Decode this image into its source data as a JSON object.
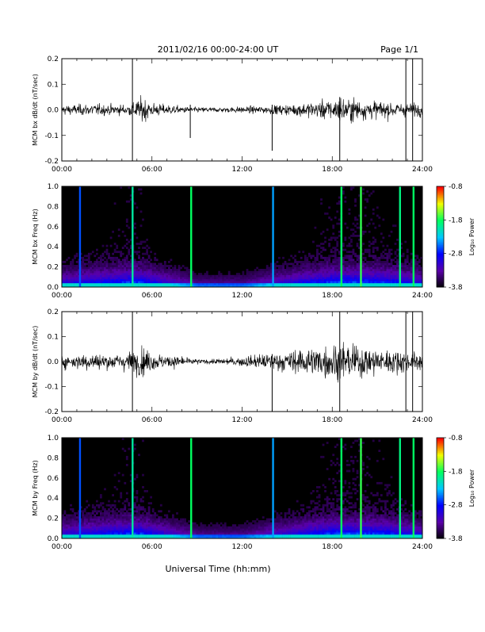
{
  "header": {
    "title": "2011/02/16  00:00-24:00 UT",
    "page": "Page 1/1"
  },
  "footer": {
    "xlabel": "Universal Time (hh:mm)"
  },
  "colorbar": {
    "label": "Log₁₀ Power",
    "ticks": [
      "-0.8",
      "-1.8",
      "-2.8",
      "-3.8"
    ],
    "tick_values": [
      -0.8,
      -1.8,
      -2.8,
      -3.8
    ],
    "range": [
      -3.8,
      -0.8
    ],
    "colormap": [
      "#000000",
      "#5a00a8",
      "#0000ff",
      "#00c8ff",
      "#00ff60",
      "#f0ff00",
      "#ff0000"
    ]
  },
  "chart_data": [
    {
      "type": "line",
      "panel": "bx-timeseries",
      "ylabel": "MCM bx dB/dt (nT/sec)",
      "x_ticks": [
        "00:00",
        "06:00",
        "12:00",
        "18:00",
        "24:00"
      ],
      "xlim": [
        0,
        24
      ],
      "ylim": [
        -0.2,
        0.2
      ],
      "y_ticks": [
        "0.2",
        "0.1",
        "0.0",
        "-0.1",
        "-0.2"
      ],
      "y_tick_values": [
        0.2,
        0.1,
        0.0,
        -0.1,
        -0.2
      ],
      "amplitude_profile": {
        "hours": [
          0,
          1,
          2,
          3,
          4,
          4.6,
          5,
          5.6,
          6,
          7,
          8,
          9,
          10,
          11,
          12,
          13,
          14,
          15,
          16,
          17,
          18,
          18.6,
          19,
          20,
          21,
          22,
          23,
          24
        ],
        "envelope": [
          0.03,
          0.03,
          0.035,
          0.03,
          0.03,
          0.035,
          0.06,
          0.07,
          0.04,
          0.03,
          0.02,
          0.015,
          0.015,
          0.015,
          0.02,
          0.02,
          0.025,
          0.03,
          0.04,
          0.05,
          0.06,
          0.08,
          0.07,
          0.06,
          0.05,
          0.045,
          0.04,
          0.035
        ]
      },
      "spikes": [
        {
          "hour": 4.7,
          "min": -0.2,
          "max": 0.2
        },
        {
          "hour": 8.55,
          "min": -0.11,
          "max": 0.02
        },
        {
          "hour": 14.0,
          "min": -0.16,
          "max": 0.02
        },
        {
          "hour": 18.5,
          "min": -0.2,
          "max": 0.05
        },
        {
          "hour": 22.9,
          "min": -0.2,
          "max": 0.2
        },
        {
          "hour": 23.35,
          "min": -0.2,
          "max": 0.2
        }
      ]
    },
    {
      "type": "heatmap",
      "panel": "bx-spectrogram",
      "ylabel": "MCM bx Freq (Hz)",
      "x_ticks": [
        "00:00",
        "06:00",
        "12:00",
        "18:00",
        "24:00"
      ],
      "xlim": [
        0,
        24
      ],
      "ylim": [
        0,
        1.0
      ],
      "y_ticks": [
        "1.0",
        "0.8",
        "0.6",
        "0.4",
        "0.2",
        "0.0"
      ],
      "y_tick_values": [
        1.0,
        0.8,
        0.6,
        0.4,
        0.2,
        0.0
      ],
      "value_range": [
        -3.8,
        -0.8
      ],
      "bright_lines": [
        {
          "hour": 1.2,
          "level": -2.6
        },
        {
          "hour": 4.7,
          "level": -2.0
        },
        {
          "hour": 8.6,
          "level": -1.8
        },
        {
          "hour": 14.05,
          "level": -2.4
        },
        {
          "hour": 18.6,
          "level": -1.8
        },
        {
          "hour": 19.9,
          "level": -1.7
        },
        {
          "hour": 22.5,
          "level": -1.9
        },
        {
          "hour": 23.4,
          "level": -1.8
        }
      ]
    },
    {
      "type": "line",
      "panel": "by-timeseries",
      "ylabel": "MCM by dB/dt (nT/sec)",
      "x_ticks": [
        "00:00",
        "06:00",
        "12:00",
        "18:00",
        "24:00"
      ],
      "xlim": [
        0,
        24
      ],
      "ylim": [
        -0.2,
        0.2
      ],
      "y_ticks": [
        "0.2",
        "0.1",
        "0.0",
        "-0.1",
        "-0.2"
      ],
      "y_tick_values": [
        0.2,
        0.1,
        0.0,
        -0.1,
        -0.2
      ],
      "amplitude_profile": {
        "hours": [
          0,
          1,
          2,
          3,
          4,
          4.6,
          5,
          5.6,
          6,
          7,
          8,
          9,
          10,
          11,
          12,
          13,
          14,
          15,
          16,
          17,
          18,
          18.6,
          19,
          20,
          21,
          22,
          23,
          24
        ],
        "envelope": [
          0.04,
          0.045,
          0.05,
          0.045,
          0.05,
          0.06,
          0.08,
          0.08,
          0.05,
          0.04,
          0.03,
          0.015,
          0.015,
          0.02,
          0.03,
          0.04,
          0.05,
          0.06,
          0.08,
          0.09,
          0.1,
          0.12,
          0.1,
          0.09,
          0.08,
          0.07,
          0.06,
          0.05
        ]
      },
      "spikes": [
        {
          "hour": 4.7,
          "min": -0.2,
          "max": 0.2
        },
        {
          "hour": 14.0,
          "min": -0.2,
          "max": 0.03
        },
        {
          "hour": 18.5,
          "min": -0.2,
          "max": 0.2
        },
        {
          "hour": 22.9,
          "min": -0.2,
          "max": 0.2
        },
        {
          "hour": 23.35,
          "min": -0.2,
          "max": 0.2
        }
      ]
    },
    {
      "type": "heatmap",
      "panel": "by-spectrogram",
      "ylabel": "MCM by Freq (Hz)",
      "x_ticks": [
        "00:00",
        "06:00",
        "12:00",
        "18:00",
        "24:00"
      ],
      "xlim": [
        0,
        24
      ],
      "ylim": [
        0,
        1.0
      ],
      "y_ticks": [
        "1.0",
        "0.8",
        "0.6",
        "0.4",
        "0.2",
        "0.0"
      ],
      "y_tick_values": [
        1.0,
        0.8,
        0.6,
        0.4,
        0.2,
        0.0
      ],
      "value_range": [
        -3.8,
        -0.8
      ],
      "bright_lines": [
        {
          "hour": 1.2,
          "level": -2.6
        },
        {
          "hour": 4.7,
          "level": -2.0
        },
        {
          "hour": 8.6,
          "level": -1.8
        },
        {
          "hour": 14.05,
          "level": -2.4
        },
        {
          "hour": 18.6,
          "level": -1.8
        },
        {
          "hour": 19.9,
          "level": -1.7
        },
        {
          "hour": 22.5,
          "level": -1.9
        },
        {
          "hour": 23.4,
          "level": -1.8
        }
      ]
    }
  ]
}
